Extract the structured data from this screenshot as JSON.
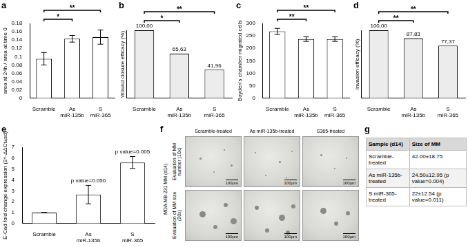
{
  "chart_data": [
    {
      "panel_label": "a",
      "type": "bar",
      "y_label": "area at 24h / area at time 0",
      "categories": [
        "Scramble",
        "As miR-135b",
        "S miR-365"
      ],
      "values": [
        0.095,
        0.143,
        0.147
      ],
      "errors": [
        0.015,
        0.008,
        0.017
      ],
      "color": "#ffffff",
      "ylim": [
        0,
        0.18
      ],
      "yticks": [
        0,
        0.02,
        0.04,
        0.06,
        0.08,
        0.1,
        0.12,
        0.14,
        0.16,
        0.18
      ],
      "grid": false,
      "significance": [
        {
          "from": 0,
          "to": 1,
          "label": "*"
        },
        {
          "from": 0,
          "to": 2,
          "label": "**"
        }
      ]
    },
    {
      "panel_label": "b",
      "type": "bar",
      "y_label": "Wound closure efficacy (%)",
      "categories": [
        "Scramble",
        "As miR-135b",
        "S miR-365"
      ],
      "values": [
        100,
        65.63,
        41.96
      ],
      "value_labels": [
        "100,00",
        "65,63",
        "41,96"
      ],
      "data_labels": true,
      "tick_labels": "x",
      "color": "#ececec",
      "ylim": [
        0,
        100
      ],
      "grid": false,
      "significance": [
        {
          "from": 0,
          "to": 1,
          "label": "*"
        },
        {
          "from": 0,
          "to": 2,
          "label": "**"
        }
      ]
    },
    {
      "panel_label": "c",
      "type": "bar",
      "y_label": "Boyden's chamber migrated cells",
      "categories": [
        "Scramble",
        "As miR-135b",
        "S miR-365"
      ],
      "values": [
        268,
        237,
        237
      ],
      "errors": [
        12,
        9,
        9
      ],
      "color": "#ffffff",
      "ylim": [
        0,
        300
      ],
      "yticks": [
        0,
        50,
        100,
        150,
        200,
        250,
        300
      ],
      "grid": false,
      "significance": [
        {
          "from": 0,
          "to": 1,
          "label": "**"
        },
        {
          "from": 0,
          "to": 2,
          "label": "**"
        }
      ]
    },
    {
      "panel_label": "d",
      "type": "bar",
      "y_label": "Invasion efficacy (%)",
      "categories": [
        "Scramble",
        "As miR-135b",
        "S miR-365"
      ],
      "values": [
        100,
        87.83,
        77.37
      ],
      "value_labels": [
        "100,00",
        "87,83",
        "77,37"
      ],
      "data_labels": true,
      "tick_labels": "x",
      "color": "#ececec",
      "ylim": [
        0,
        100
      ],
      "grid": false,
      "significance": [
        {
          "from": 0,
          "to": 1,
          "label": "**"
        },
        {
          "from": 0,
          "to": 2,
          "label": "**"
        }
      ]
    },
    {
      "panel_label": "e",
      "type": "bar",
      "y_label": "E-Cad fold change expression (2^-ΔΔCt±sd)",
      "categories": [
        "Scramble",
        "As miR-135b",
        "S miR-365"
      ],
      "values": [
        1,
        2.65,
        5.6
      ],
      "errors": [
        0,
        0.85,
        0.55
      ],
      "color": "#ffffff",
      "ylim": [
        0,
        7
      ],
      "yticks": [
        0,
        1,
        2,
        3,
        4,
        5,
        6,
        7
      ],
      "grid": false,
      "annotations": [
        {
          "index": 1,
          "text": "p value=0.050"
        },
        {
          "index": 2,
          "text": "p value=0.005"
        }
      ]
    }
  ],
  "image_panel": {
    "panel_label": "f",
    "side_label": "MDA-MB-231 MM (d14)",
    "columns": [
      "Scramble-treated",
      "As miR-135b-treated",
      "S365-treated"
    ],
    "rows": [
      "Evaluation of MM number (10x)",
      "Evaluation of MM size (20x)"
    ],
    "scale_bar": "100µm"
  },
  "table_panel": {
    "panel_label": "g",
    "header": [
      "Sample (d14)",
      "Size of MM"
    ],
    "rows": [
      [
        "Scramble-treated",
        "42.00±18.75"
      ],
      [
        "As miR-135b-treated",
        "24.50±12.95 (p value=0.004)"
      ],
      [
        "S miR-365-treated",
        "22±12.54 (p value=0.011)"
      ]
    ]
  }
}
